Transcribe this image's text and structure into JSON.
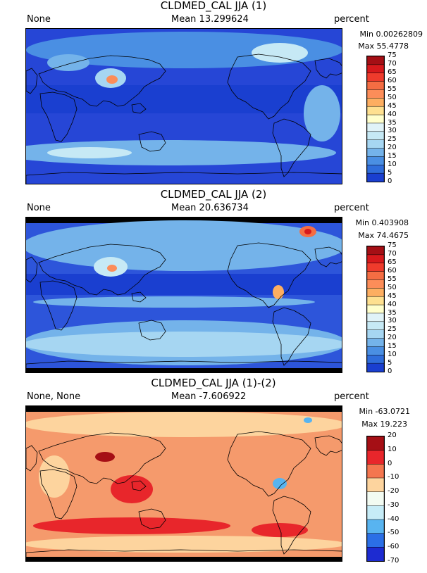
{
  "panels": [
    {
      "title": "CLDMED_CAL JJA (1)",
      "left_label": "None",
      "mean_label": "Mean 13.299624",
      "units": "percent",
      "min_label": "Min 0.00262809",
      "max_label": "Max 55.4778",
      "levels": [
        "75",
        "70",
        "65",
        "60",
        "55",
        "50",
        "45",
        "40",
        "35",
        "30",
        "25",
        "20",
        "15",
        "10",
        "5",
        "0"
      ],
      "colors": [
        "#a50f15",
        "#d7191c",
        "#ef3b2c",
        "#f46d43",
        "#fc8d59",
        "#fdae61",
        "#fee090",
        "#ffffcc",
        "#e0f3f8",
        "#c6e9f5",
        "#a6d6f2",
        "#74b3ea",
        "#4a8fe3",
        "#2f6ddb",
        "#1a3fd0"
      ],
      "base_color": "#2646d6"
    },
    {
      "title": "CLDMED_CAL JJA (2)",
      "left_label": "None",
      "mean_label": "Mean 20.636734",
      "units": "percent",
      "min_label": "Min 0.403908",
      "max_label": "Max 74.4675",
      "levels": [
        "75",
        "70",
        "65",
        "60",
        "55",
        "50",
        "45",
        "40",
        "35",
        "30",
        "25",
        "20",
        "15",
        "10",
        "5",
        "0"
      ],
      "colors": [
        "#a50f15",
        "#d7191c",
        "#ef3b2c",
        "#f46d43",
        "#fc8d59",
        "#fdae61",
        "#fee090",
        "#ffffcc",
        "#e0f3f8",
        "#c6e9f5",
        "#a6d6f2",
        "#74b3ea",
        "#4a8fe3",
        "#2f6ddb",
        "#1a3fd0"
      ],
      "base_color": "#2d55da"
    },
    {
      "title": "CLDMED_CAL JJA (1)-(2)",
      "left_label": "None, None",
      "mean_label": "Mean -7.606922",
      "units": "percent",
      "min_label": "Min -63.0721",
      "max_label": "Max 19.223",
      "levels": [
        "20",
        "10",
        "0",
        "-10",
        "-20",
        "-30",
        "-40",
        "-50",
        "-60",
        "-70"
      ],
      "colors": [
        "#a50f15",
        "#e8262b",
        "#f4764f",
        "#fdd49e",
        "#f2fbf2",
        "#c6ecf7",
        "#58b4f0",
        "#2b6fe6",
        "#1d2bd1"
      ],
      "base_color": "#f59a6c"
    }
  ],
  "chart_data": [
    {
      "type": "heatmap",
      "title": "CLDMED_CAL JJA (1)",
      "units": "percent",
      "mean": 13.299624,
      "min": 0.00262809,
      "max": 55.4778,
      "colorbar_levels": [
        0,
        5,
        10,
        15,
        20,
        25,
        30,
        35,
        40,
        45,
        50,
        55,
        60,
        65,
        70,
        75
      ]
    },
    {
      "type": "heatmap",
      "title": "CLDMED_CAL JJA (2)",
      "units": "percent",
      "mean": 20.636734,
      "min": 0.403908,
      "max": 74.4675,
      "colorbar_levels": [
        0,
        5,
        10,
        15,
        20,
        25,
        30,
        35,
        40,
        45,
        50,
        55,
        60,
        65,
        70,
        75
      ]
    },
    {
      "type": "heatmap",
      "title": "CLDMED_CAL JJA (1)-(2)",
      "units": "percent",
      "mean": -7.606922,
      "min": -63.0721,
      "max": 19.223,
      "colorbar_levels": [
        -70,
        -60,
        -50,
        -40,
        -30,
        -20,
        -10,
        0,
        10,
        20
      ]
    }
  ]
}
